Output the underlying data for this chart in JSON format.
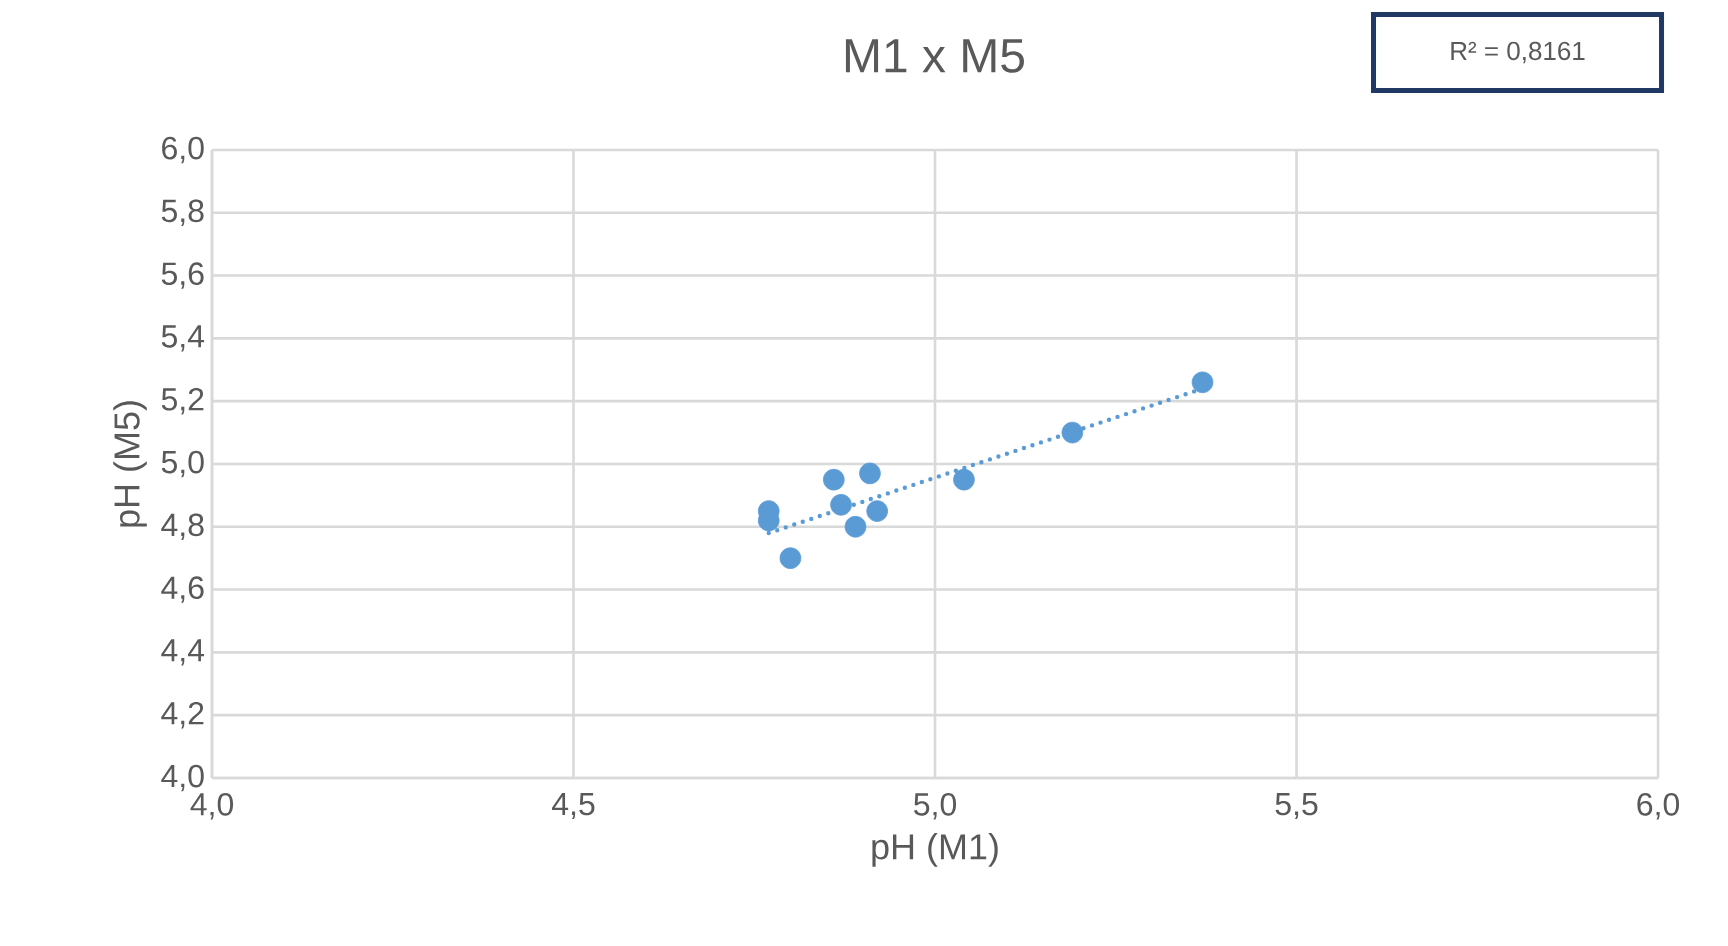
{
  "chart_data": {
    "type": "scatter",
    "title": "M1 x M5",
    "xlabel": "pH (M1)",
    "ylabel": "pH (M5)",
    "annotations": [
      "R² = 0,8161"
    ],
    "xlim": [
      4.0,
      6.0
    ],
    "ylim": [
      4.0,
      6.0
    ],
    "xticks": [
      {
        "value": 4.0,
        "label": "4,0"
      },
      {
        "value": 4.5,
        "label": "4,5"
      },
      {
        "value": 5.0,
        "label": "5,0"
      },
      {
        "value": 5.5,
        "label": "5,5"
      },
      {
        "value": 6.0,
        "label": "6,0"
      }
    ],
    "yticks": [
      {
        "value": 4.0,
        "label": "4,0"
      },
      {
        "value": 4.2,
        "label": "4,2"
      },
      {
        "value": 4.4,
        "label": "4,4"
      },
      {
        "value": 4.6,
        "label": "4,6"
      },
      {
        "value": 4.8,
        "label": "4,8"
      },
      {
        "value": 5.0,
        "label": "5,0"
      },
      {
        "value": 5.2,
        "label": "5,2"
      },
      {
        "value": 5.4,
        "label": "5,4"
      },
      {
        "value": 5.6,
        "label": "5,6"
      },
      {
        "value": 5.8,
        "label": "5,8"
      },
      {
        "value": 6.0,
        "label": "6,0"
      }
    ],
    "grid": true,
    "series": [
      {
        "color": "#5b9bd5",
        "marker": "circle",
        "x": [
          4.77,
          4.77,
          4.8,
          4.86,
          4.87,
          4.91,
          4.92,
          4.89,
          5.04,
          5.19,
          5.37
        ],
        "values": [
          4.85,
          4.82,
          4.7,
          4.95,
          4.87,
          4.97,
          4.85,
          4.8,
          4.95,
          5.1,
          5.26
        ]
      },
      {
        "type": "line",
        "color": "#5b9bd5",
        "marker": "none",
        "line_style": "dotted",
        "x": [
          4.77,
          5.37
        ],
        "values": [
          4.78,
          5.24
        ]
      }
    ]
  }
}
